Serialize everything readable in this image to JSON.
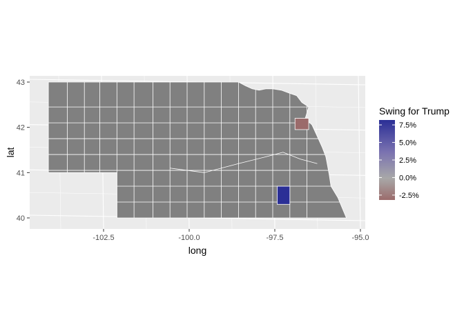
{
  "chart_data": {
    "type": "choropleth-map",
    "region": "Nebraska counties",
    "xlabel": "long",
    "ylabel": "lat",
    "xlim": [
      -104.3,
      -94.9
    ],
    "ylim": [
      39.8,
      43.2
    ],
    "x_ticks": [
      {
        "value": -102.5,
        "label": "-102.5"
      },
      {
        "value": -100.0,
        "label": "-100.0"
      },
      {
        "value": -97.5,
        "label": "-97.5"
      },
      {
        "value": -95.0,
        "label": "-95.0"
      }
    ],
    "y_ticks": [
      {
        "value": 40,
        "label": "40"
      },
      {
        "value": 41,
        "label": "41"
      },
      {
        "value": 42,
        "label": "42"
      },
      {
        "value": 43,
        "label": "43"
      }
    ],
    "grid": true,
    "panel_background": "#ebebeb",
    "county_fill_default": "#808080",
    "county_border": "#ffffff",
    "highlighted_counties": [
      {
        "name": "",
        "lon_range": [
          -97.37,
          -97.0
        ],
        "lat_range": [
          40.3,
          40.7
        ],
        "value": 8.0,
        "color": "#2b2f96"
      },
      {
        "name": "",
        "lon_range": [
          -96.85,
          -96.45
        ],
        "lat_range": [
          41.95,
          42.2
        ],
        "value": -2.5,
        "color": "#9b6b6b"
      }
    ],
    "legend": {
      "title": "Swing for Trump",
      "position": "right",
      "range": [
        -3.0,
        8.0
      ],
      "color_low": "#9b6b6b",
      "color_mid": "#a8a8a8",
      "color_high": "#2b2f96",
      "breaks": [
        {
          "value": 7.5,
          "label": "7.5%"
        },
        {
          "value": 5.0,
          "label": "5.0%"
        },
        {
          "value": 2.5,
          "label": "2.5%"
        },
        {
          "value": 0.0,
          "label": "0.0%"
        },
        {
          "value": -2.5,
          "label": "-2.5%"
        }
      ]
    }
  }
}
